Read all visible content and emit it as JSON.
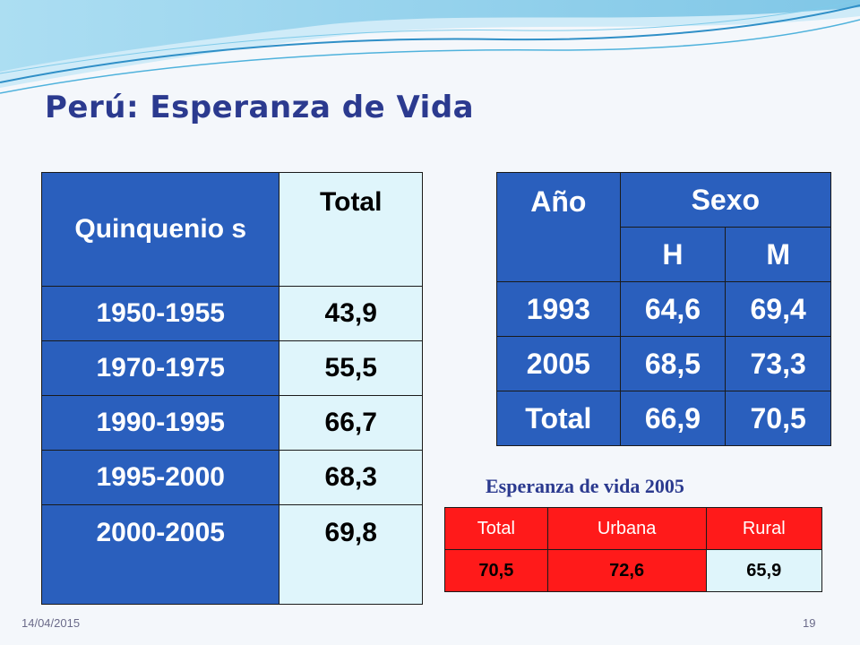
{
  "title": "Perú: Esperanza de Vida",
  "left_table": {
    "headers": [
      "Quinquenio s",
      "Total"
    ],
    "rows": [
      [
        "1950-1955",
        "43,9"
      ],
      [
        "1970-1975",
        "55,5"
      ],
      [
        "1990-1995",
        "66,7"
      ],
      [
        "1995-2000",
        "68,3"
      ],
      [
        "2000-2005",
        "69,8"
      ]
    ]
  },
  "right_table": {
    "header_year": "Año",
    "header_sex": "Sexo",
    "sub_headers": [
      "H",
      "M"
    ],
    "rows": [
      [
        "1993",
        "64,6",
        "69,4"
      ],
      [
        "2005",
        "68,5",
        "73,3"
      ],
      [
        "Total",
        "66,9",
        "70,5"
      ]
    ]
  },
  "bottom_table": {
    "caption": "Esperanza de vida 2005",
    "headers": [
      "Total",
      "Urbana",
      "Rural"
    ],
    "values": [
      "70,5",
      "72,6",
      "65,9"
    ]
  },
  "footer": {
    "date": "14/04/2015",
    "page": "19"
  },
  "colors": {
    "title": "#2b3a8f",
    "table_blue": "#2a5fbd",
    "table_light": "#dff5fb",
    "header_red": "#ff1a1a"
  }
}
